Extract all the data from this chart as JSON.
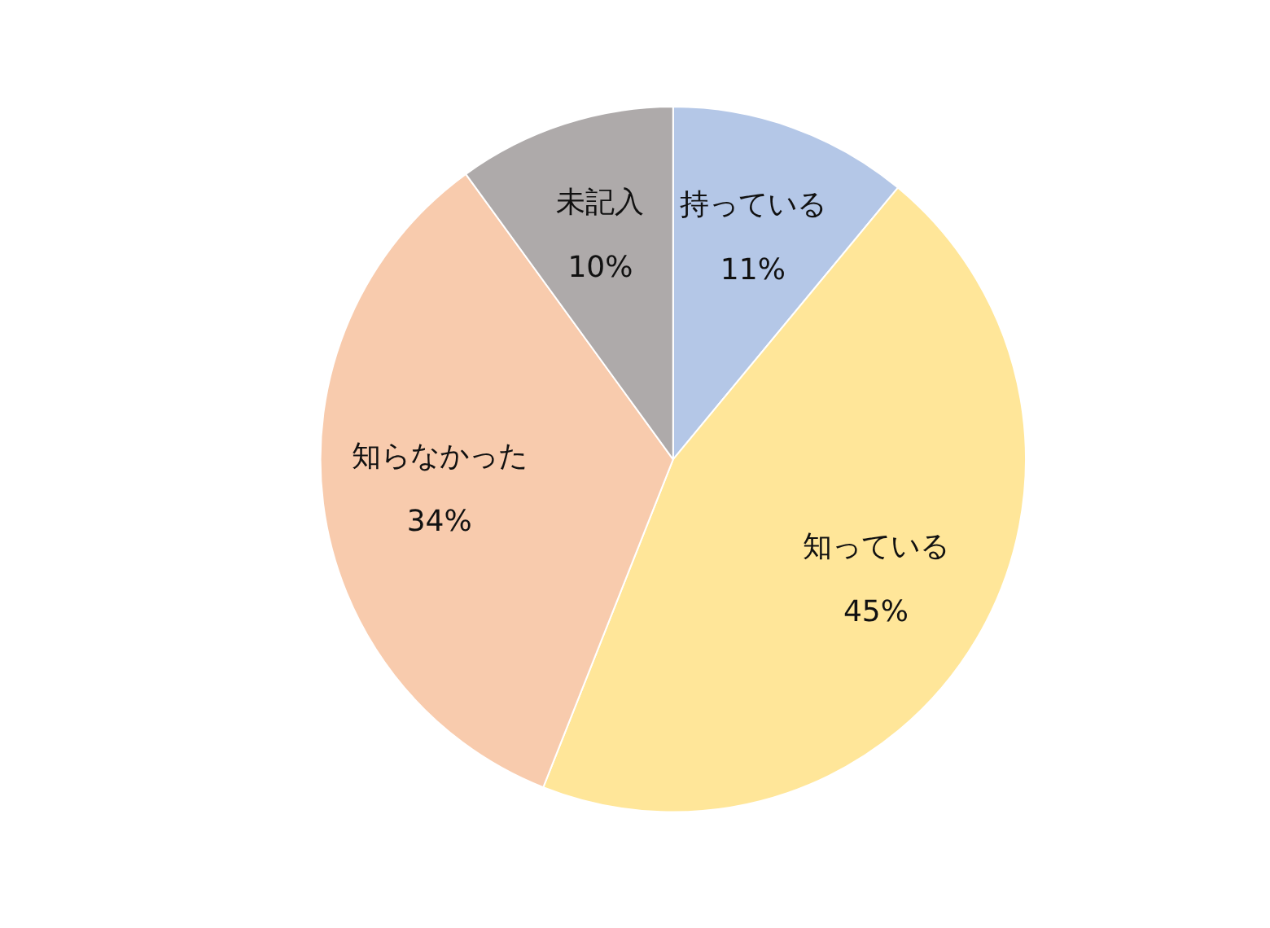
{
  "chart_data": {
    "type": "pie",
    "categories": [
      "持っている",
      "知っている",
      "知らなかった",
      "未記入"
    ],
    "values": [
      11,
      45,
      34,
      10
    ],
    "value_labels": [
      "11%",
      "45%",
      "34%",
      "10%"
    ],
    "colors": [
      "#b4c7e7",
      "#ffe699",
      "#f8cbad",
      "#aeaaaa"
    ],
    "legend": false
  }
}
